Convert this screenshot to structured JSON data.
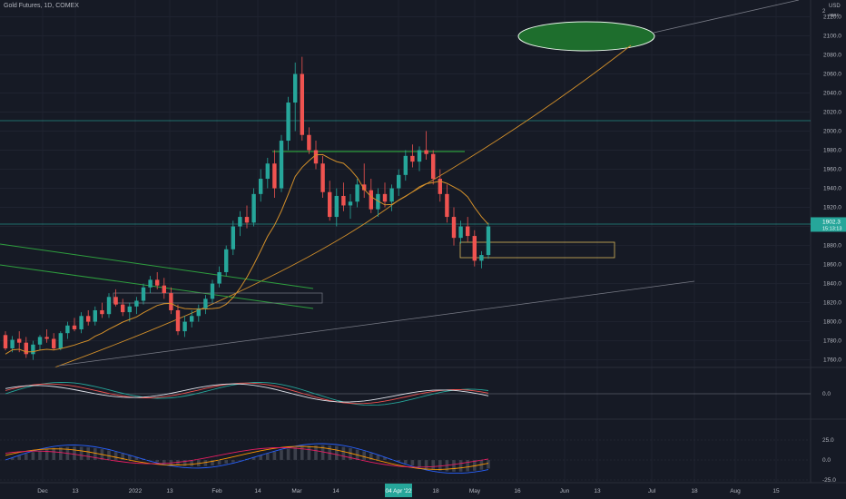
{
  "chart_title": "Gold Futures, 1D, COMEX",
  "currency": "USD",
  "corner_sub": "apoz",
  "corner_number": "2",
  "price_label": {
    "value": "1902.3",
    "countdown": "15:13:13"
  },
  "osc1_label": "0.0",
  "osc2_labels": [
    "25.0",
    "0.0",
    "-25.0"
  ],
  "chart_data": {
    "type": "candlestick",
    "symbol": "Gold Futures",
    "timeframe": "1D",
    "exchange": "COMEX",
    "price_ticks": [
      "2120.0",
      "2100.0",
      "2080.0",
      "2060.0",
      "2040.0",
      "2020.0",
      "2000.0",
      "1980.0",
      "1960.0",
      "1940.0",
      "1920.0",
      "1900.0",
      "1880.0",
      "1860.0",
      "1840.0",
      "1820.0",
      "1800.0",
      "1780.0",
      "1760.0"
    ],
    "date_ticks": [
      "Dec",
      "13",
      "2022",
      "13",
      "Feb",
      "14",
      "Mar",
      "14",
      "04 Apr '22",
      "18",
      "May",
      "16",
      "Jun",
      "13",
      "Jul",
      "18",
      "Aug",
      "15"
    ],
    "highlighted_date": "04 Apr '22",
    "y_range": [
      1752,
      2130
    ],
    "candles_ohlc": [
      [
        1786,
        1790,
        1770,
        1772
      ],
      [
        1772,
        1785,
        1768,
        1781
      ],
      [
        1782,
        1790,
        1768,
        1778
      ],
      [
        1778,
        1784,
        1762,
        1766
      ],
      [
        1766,
        1780,
        1760,
        1776
      ],
      [
        1776,
        1786,
        1770,
        1784
      ],
      [
        1784,
        1792,
        1778,
        1782
      ],
      [
        1782,
        1788,
        1770,
        1772
      ],
      [
        1772,
        1790,
        1770,
        1788
      ],
      [
        1788,
        1800,
        1782,
        1796
      ],
      [
        1796,
        1804,
        1790,
        1792
      ],
      [
        1792,
        1810,
        1788,
        1806
      ],
      [
        1806,
        1812,
        1796,
        1800
      ],
      [
        1800,
        1816,
        1796,
        1812
      ],
      [
        1812,
        1820,
        1804,
        1808
      ],
      [
        1808,
        1830,
        1804,
        1826
      ],
      [
        1826,
        1834,
        1816,
        1818
      ],
      [
        1818,
        1824,
        1806,
        1810
      ],
      [
        1810,
        1820,
        1800,
        1816
      ],
      [
        1816,
        1826,
        1808,
        1822
      ],
      [
        1822,
        1840,
        1818,
        1836
      ],
      [
        1836,
        1848,
        1830,
        1844
      ],
      [
        1844,
        1852,
        1834,
        1838
      ],
      [
        1838,
        1846,
        1824,
        1830
      ],
      [
        1830,
        1836,
        1808,
        1812
      ],
      [
        1812,
        1818,
        1786,
        1790
      ],
      [
        1790,
        1806,
        1784,
        1800
      ],
      [
        1800,
        1812,
        1794,
        1806
      ],
      [
        1806,
        1818,
        1800,
        1814
      ],
      [
        1814,
        1828,
        1808,
        1824
      ],
      [
        1824,
        1844,
        1820,
        1840
      ],
      [
        1840,
        1858,
        1836,
        1852
      ],
      [
        1852,
        1880,
        1848,
        1876
      ],
      [
        1876,
        1906,
        1870,
        1900
      ],
      [
        1900,
        1916,
        1890,
        1910
      ],
      [
        1910,
        1922,
        1898,
        1904
      ],
      [
        1904,
        1940,
        1900,
        1934
      ],
      [
        1934,
        1960,
        1926,
        1950
      ],
      [
        1950,
        1972,
        1940,
        1966
      ],
      [
        1966,
        1980,
        1930,
        1940
      ],
      [
        1940,
        1996,
        1936,
        1990
      ],
      [
        1990,
        2036,
        1980,
        2030
      ],
      [
        2030,
        2072,
        2000,
        2060
      ],
      [
        2060,
        2078,
        1990,
        1996
      ],
      [
        1996,
        2004,
        1976,
        1980
      ],
      [
        1980,
        1990,
        1960,
        1966
      ],
      [
        1966,
        1974,
        1930,
        1936
      ],
      [
        1936,
        1948,
        1906,
        1910
      ],
      [
        1910,
        1940,
        1900,
        1932
      ],
      [
        1932,
        1946,
        1916,
        1922
      ],
      [
        1922,
        1934,
        1908,
        1926
      ],
      [
        1926,
        1950,
        1920,
        1944
      ],
      [
        1944,
        1966,
        1930,
        1938
      ],
      [
        1938,
        1950,
        1914,
        1918
      ],
      [
        1918,
        1940,
        1910,
        1934
      ],
      [
        1934,
        1946,
        1920,
        1926
      ],
      [
        1926,
        1944,
        1916,
        1940
      ],
      [
        1940,
        1960,
        1932,
        1954
      ],
      [
        1954,
        1980,
        1948,
        1974
      ],
      [
        1974,
        1986,
        1962,
        1968
      ],
      [
        1968,
        1984,
        1958,
        1980
      ],
      [
        1980,
        2000,
        1970,
        1976
      ],
      [
        1976,
        1980,
        1944,
        1950
      ],
      [
        1950,
        1960,
        1926,
        1934
      ],
      [
        1934,
        1944,
        1904,
        1910
      ],
      [
        1910,
        1920,
        1880,
        1888
      ],
      [
        1888,
        1906,
        1882,
        1900
      ],
      [
        1900,
        1910,
        1884,
        1890
      ],
      [
        1890,
        1896,
        1858,
        1864
      ],
      [
        1864,
        1874,
        1856,
        1870
      ],
      [
        1870,
        1904,
        1866,
        1900
      ]
    ]
  }
}
